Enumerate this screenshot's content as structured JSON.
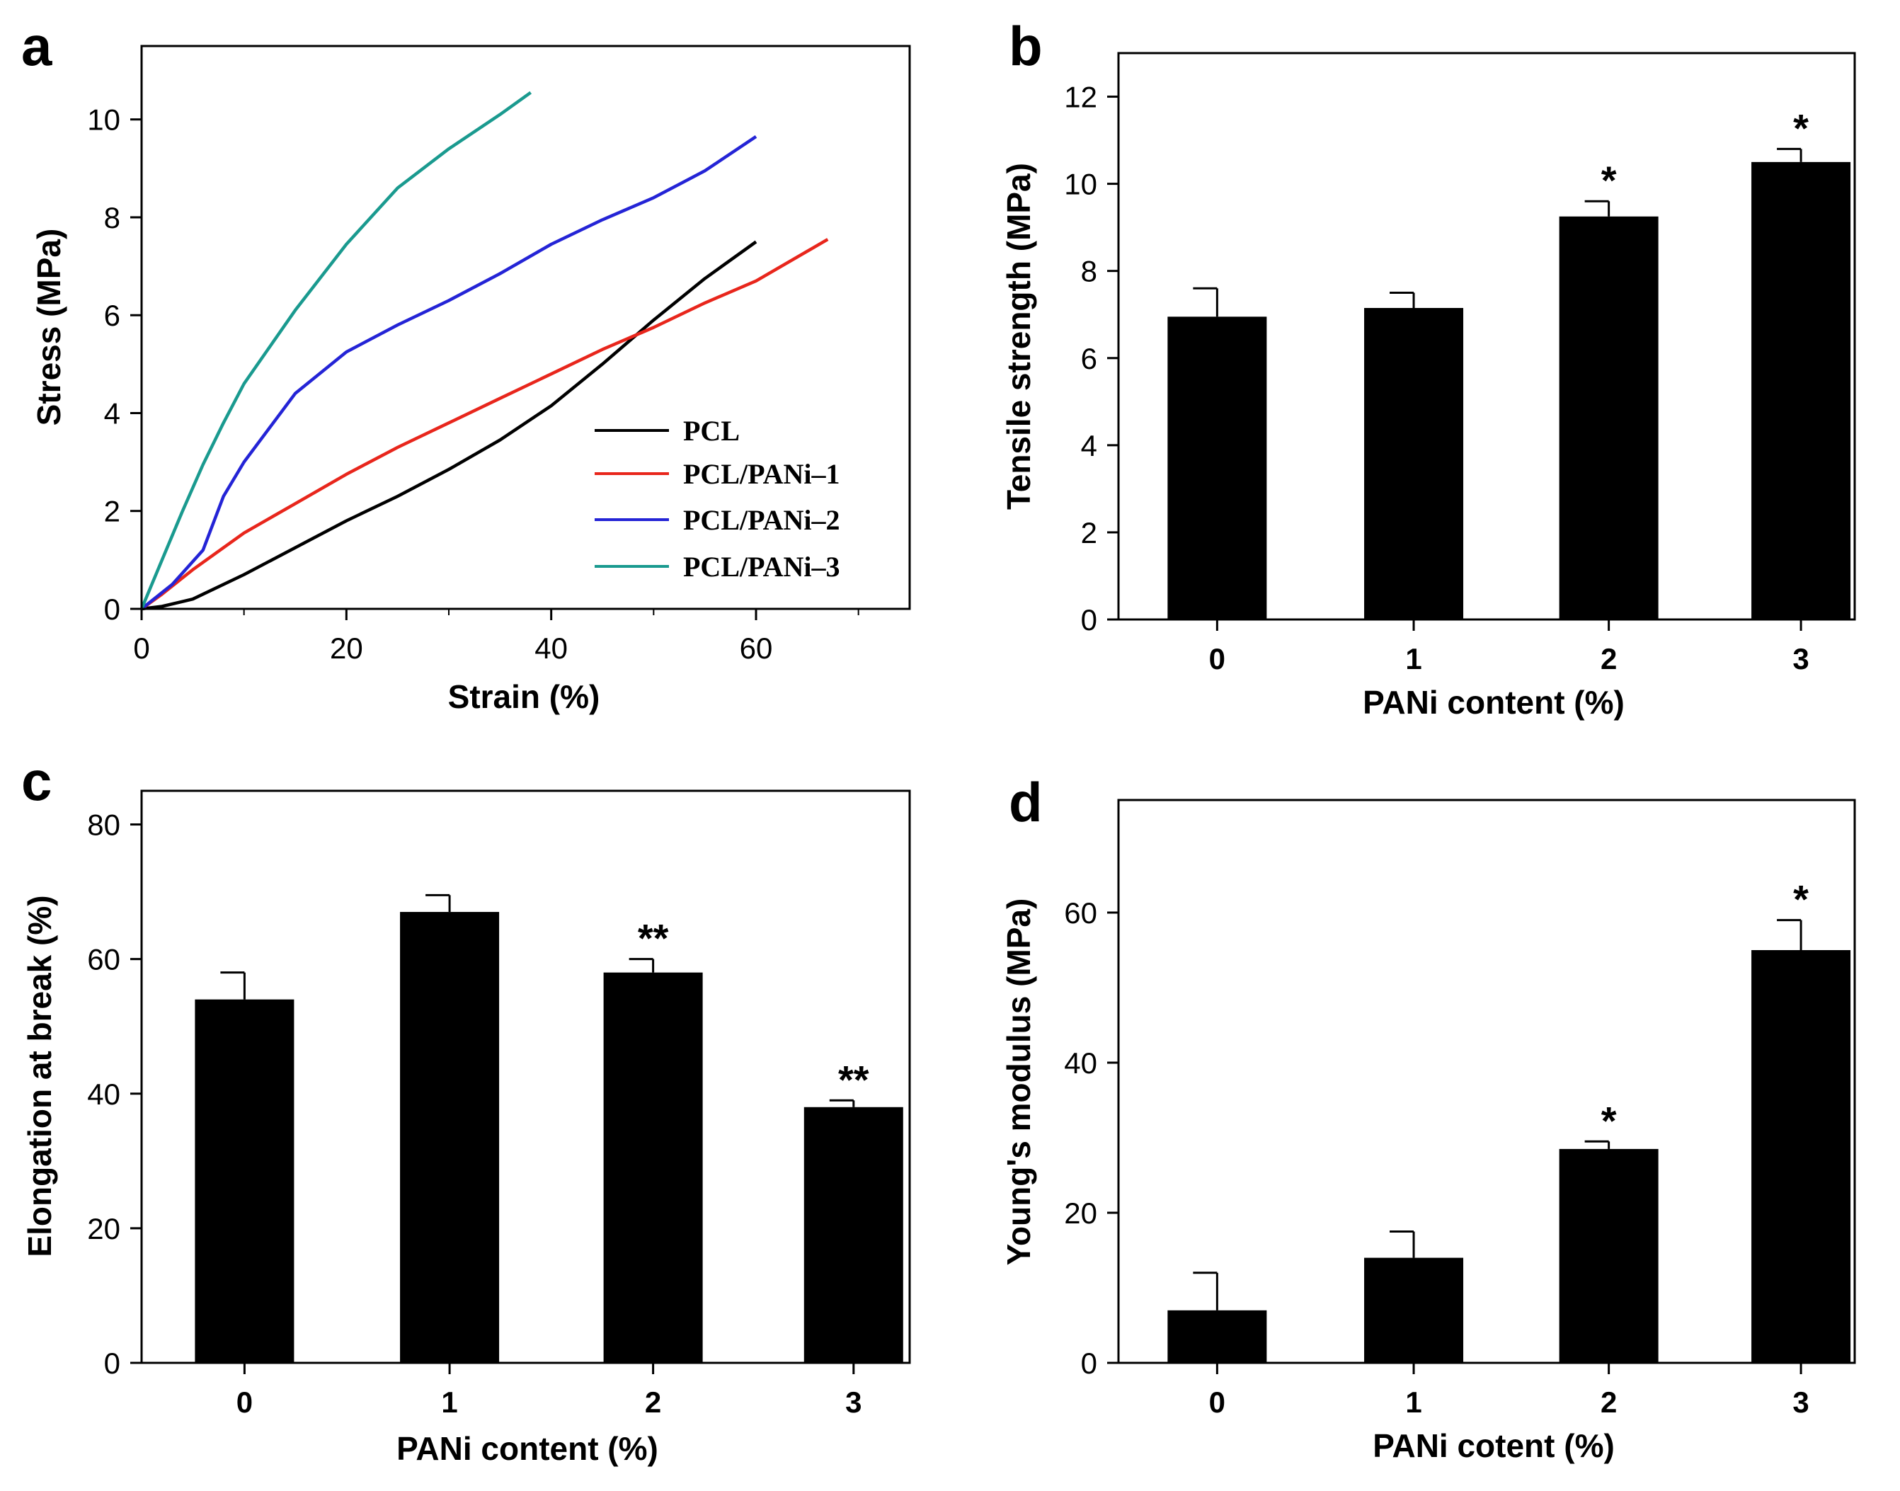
{
  "chart_data": [
    {
      "panel": "a",
      "type": "line",
      "xlabel": "Strain (%)",
      "ylabel": "Stress (MPa)",
      "xlim": [
        0,
        75
      ],
      "ylim": [
        0,
        11.5
      ],
      "xticks": [
        0,
        20,
        40,
        60
      ],
      "yticks": [
        0,
        2,
        4,
        6,
        8,
        10
      ],
      "legend_position": "lower-right",
      "series": [
        {
          "name": "PCL",
          "color": "#000000",
          "x": [
            0,
            2,
            5,
            10,
            15,
            20,
            25,
            30,
            35,
            40,
            45,
            50,
            55,
            60
          ],
          "y": [
            0,
            0.05,
            0.2,
            0.7,
            1.25,
            1.8,
            2.3,
            2.85,
            3.45,
            4.15,
            5.0,
            5.9,
            6.75,
            7.5
          ]
        },
        {
          "name": "PCL/PANi–1",
          "color": "#e8261c",
          "x": [
            0,
            2,
            5,
            10,
            15,
            20,
            25,
            30,
            35,
            40,
            45,
            50,
            55,
            60,
            67
          ],
          "y": [
            0,
            0.3,
            0.8,
            1.55,
            2.15,
            2.75,
            3.3,
            3.8,
            4.3,
            4.8,
            5.3,
            5.75,
            6.25,
            6.7,
            7.55
          ]
        },
        {
          "name": "PCL/PANi–2",
          "color": "#2424d6",
          "x": [
            0,
            3,
            6,
            8,
            10,
            15,
            20,
            25,
            30,
            35,
            40,
            45,
            50,
            55,
            60
          ],
          "y": [
            0,
            0.5,
            1.2,
            2.3,
            3.0,
            4.4,
            5.25,
            5.8,
            6.3,
            6.85,
            7.45,
            7.95,
            8.4,
            8.95,
            9.65
          ]
        },
        {
          "name": "PCL/PANi–3",
          "color": "#1a9a8f",
          "x": [
            0,
            2,
            4,
            6,
            8,
            10,
            15,
            20,
            25,
            30,
            35,
            38
          ],
          "y": [
            0,
            1.0,
            2.0,
            2.95,
            3.8,
            4.6,
            6.1,
            7.45,
            8.6,
            9.4,
            10.1,
            10.55
          ]
        }
      ]
    },
    {
      "panel": "b",
      "type": "bar",
      "xlabel": "PANi content (%)",
      "ylabel": "Tensile strength (MPa)",
      "categories": [
        "0",
        "1",
        "2",
        "3"
      ],
      "values": [
        6.95,
        7.15,
        9.25,
        10.5
      ],
      "errors": [
        0.65,
        0.35,
        0.35,
        0.3
      ],
      "annotations": [
        "",
        "",
        "*",
        "*"
      ],
      "ylim": [
        0,
        13
      ],
      "yticks": [
        0,
        2,
        4,
        6,
        8,
        10,
        12
      ]
    },
    {
      "panel": "c",
      "type": "bar",
      "xlabel": "PANi content (%)",
      "ylabel": "Elongation at break (%)",
      "categories": [
        "0",
        "1",
        "2",
        "3"
      ],
      "values": [
        54,
        67,
        58,
        38
      ],
      "errors": [
        4,
        2.5,
        2,
        1
      ],
      "annotations": [
        "",
        "",
        "**",
        "**"
      ],
      "ylim": [
        0,
        85
      ],
      "yticks": [
        0,
        20,
        40,
        60,
        80
      ]
    },
    {
      "panel": "d",
      "type": "bar",
      "xlabel": "PANi cotent (%)",
      "ylabel": "Young's modulus (MPa)",
      "categories": [
        "0",
        "1",
        "2",
        "3"
      ],
      "values": [
        7,
        14,
        28.5,
        55
      ],
      "errors": [
        5,
        3.5,
        1,
        4
      ],
      "annotations": [
        "",
        "",
        "*",
        "*"
      ],
      "ylim": [
        0,
        75
      ],
      "yticks": [
        0,
        20,
        40,
        60
      ]
    }
  ]
}
